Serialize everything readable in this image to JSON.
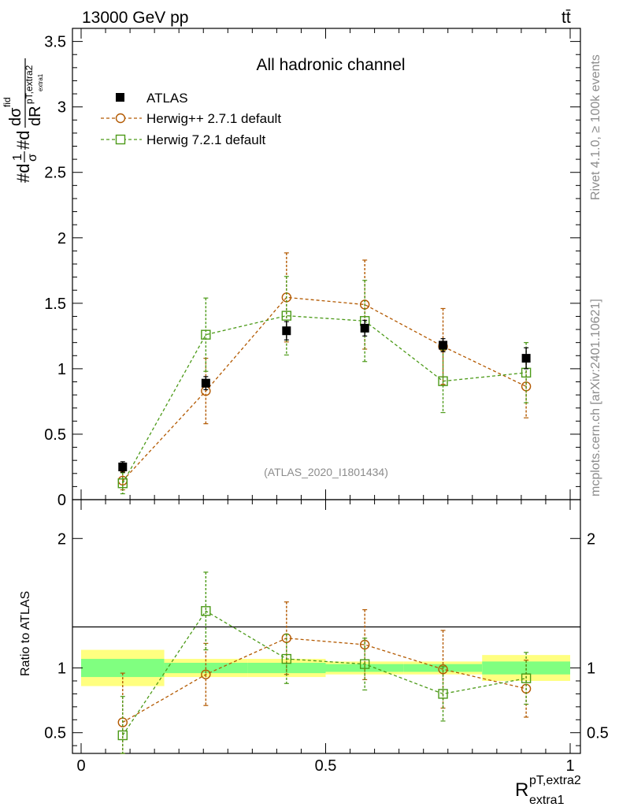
{
  "header": {
    "energy_label": "13000 GeV pp",
    "process_label": "tt̄"
  },
  "side_labels": {
    "rivet": "Rivet 4.1.0, ≥ 100k events",
    "mcplots": "mcplots.cern.ch [arXiv:2401.10621]"
  },
  "chart_data": {
    "type": "scatter",
    "title": "All hadronic channel",
    "analysis_id": "(ATLAS_2020_I1801434)",
    "ylabel": "#d1/σ#dd σ^fid/dR^{pT,extra2}_{extra1}",
    "ylabel_parts": {
      "prefix": "#d",
      "frac1_num": "1",
      "frac1_den": "σ",
      "mid": "#d",
      "frac2_num": "dσ",
      "frac2_num_sup": "fid",
      "frac2_den": "dR",
      "frac2_den_sup": "pT,extra2",
      "frac2_den_sub": "extra1"
    },
    "xlabel": {
      "main": "R",
      "sup": "pT,extra2",
      "sub": "extra1"
    },
    "ratio_ylabel": "Ratio to ATLAS",
    "xlim": [
      0,
      1
    ],
    "ylim": [
      0,
      3.6
    ],
    "ratio_ylim": [
      0.34,
      2.3
    ],
    "x_ticks": [
      "0",
      "0.5",
      "1"
    ],
    "y_ticks": [
      "0",
      "0.5",
      "1",
      "1.5",
      "2",
      "2.5",
      "3",
      "3.5"
    ],
    "ratio_y_ticks": [
      "0.5",
      "1",
      "2"
    ],
    "bin_edges": [
      0,
      0.17,
      0.34,
      0.5,
      0.66,
      0.82,
      1.0
    ],
    "x": [
      0.085,
      0.255,
      0.42,
      0.58,
      0.74,
      0.91
    ],
    "series": [
      {
        "name": "ATLAS",
        "marker": "square-filled",
        "color": "#000000",
        "values": [
          0.25,
          0.89,
          1.29,
          1.31,
          1.18,
          1.08
        ],
        "errors": [
          0.04,
          0.05,
          0.07,
          0.06,
          0.05,
          0.08
        ]
      },
      {
        "name": "Herwig++ 2.7.1 default",
        "marker": "circle-open",
        "color": "#b35900",
        "values": [
          0.145,
          0.83,
          1.545,
          1.49,
          1.17,
          0.865
        ],
        "errors": [
          0.07,
          0.25,
          0.34,
          0.34,
          0.29,
          0.24
        ],
        "ratio": [
          0.58,
          0.95,
          1.23,
          1.18,
          0.99,
          0.84
        ],
        "ratio_errors": [
          0.38,
          0.24,
          0.28,
          0.27,
          0.3,
          0.22
        ]
      },
      {
        "name": "Herwig 7.2.1 default",
        "marker": "square-open",
        "color": "#4c9a18",
        "values": [
          0.125,
          1.26,
          1.405,
          1.365,
          0.905,
          0.97
        ],
        "errors": [
          0.08,
          0.28,
          0.3,
          0.31,
          0.24,
          0.23
        ],
        "ratio": [
          0.48,
          1.44,
          1.07,
          1.03,
          0.8,
          0.92
        ],
        "ratio_errors": [
          0.3,
          0.3,
          0.19,
          0.2,
          0.21,
          0.2
        ]
      }
    ],
    "ratio_bands": {
      "yellow_half_width": [
        0.14,
        0.07,
        0.07,
        0.05,
        0.05,
        0.1
      ],
      "green_half_width": [
        0.07,
        0.04,
        0.04,
        0.03,
        0.03,
        0.05
      ],
      "yellow_color": "#ffff80",
      "green_color": "#80ff80"
    }
  }
}
